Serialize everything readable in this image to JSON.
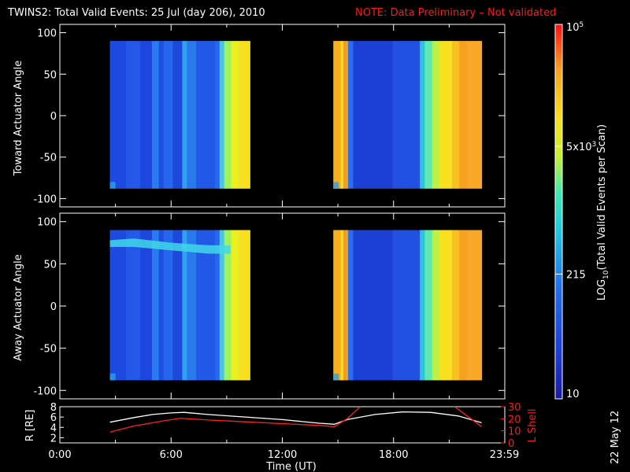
{
  "header": {
    "title": "TWINS2: Total Valid Events: 25 Jul (day 206), 2010",
    "note": "NOTE: Data Preliminary – Not validated"
  },
  "side_date": "22 May 12",
  "colors": {
    "background": "#000000",
    "axis": "#ffffff",
    "note": "#ff1a1a",
    "r_line": "#ffffff",
    "lshell_line": "#ff2020"
  },
  "chart_data": [
    {
      "type": "heatmap",
      "panel": "toward",
      "ylabel": "Toward Actuator Angle",
      "ylim": [
        -110,
        110
      ],
      "yticks": [
        100,
        50,
        0,
        -50,
        -100
      ],
      "xlim": [
        0,
        24
      ],
      "blocks": [
        {
          "t_start": 2.7,
          "t_end": 10.25,
          "angle_min": -88,
          "angle_max": 90
        },
        {
          "t_start": 14.75,
          "t_end": 22.75,
          "angle_min": -88,
          "angle_max": 90
        }
      ]
    },
    {
      "type": "heatmap",
      "panel": "away",
      "ylabel": "Away Actuator Angle",
      "ylim": [
        -110,
        110
      ],
      "yticks": [
        100,
        50,
        0,
        -50,
        -100
      ],
      "xlim": [
        0,
        24
      ],
      "blocks": [
        {
          "t_start": 2.7,
          "t_end": 10.25,
          "angle_min": -88,
          "angle_max": 90
        },
        {
          "t_start": 14.75,
          "t_end": 22.75,
          "angle_min": -88,
          "angle_max": 90
        }
      ]
    },
    {
      "type": "line",
      "panel": "orbit",
      "ylabel": "R [RE]",
      "y2label": "L Shell",
      "ylim": [
        1,
        8
      ],
      "yticks": [
        2,
        4,
        6,
        8
      ],
      "y2lim": [
        0,
        30
      ],
      "y2ticks": [
        0,
        10,
        20,
        30
      ],
      "xlim": [
        0,
        24
      ],
      "xticklabels": [
        "0:00",
        "6:00",
        "12:00",
        "18:00",
        "23:59"
      ],
      "xtickvalues": [
        0,
        6,
        12,
        18,
        23.98
      ],
      "xlabel": "Time (UT)",
      "series": [
        {
          "key": "R",
          "axis": "left",
          "color": "#ffffff",
          "x": [
            2.7,
            4,
            5,
            6,
            6.7,
            8,
            10,
            12,
            14,
            14.8,
            15.5,
            17,
            18.5,
            20,
            21.5,
            22.75
          ],
          "y": [
            5.0,
            5.9,
            6.5,
            6.8,
            6.9,
            6.5,
            6.0,
            5.5,
            4.8,
            4.6,
            5.5,
            6.5,
            7.0,
            6.9,
            6.2,
            4.9
          ]
        },
        {
          "key": "L",
          "axis": "right",
          "color": "#ff2020",
          "x": [
            2.7,
            4,
            5.5,
            6.5,
            8,
            10,
            12,
            14,
            14.8,
            15.5,
            16.2
          ],
          "y": [
            9,
            14,
            18,
            20.5,
            19,
            17.5,
            16,
            14.5,
            13.5,
            20,
            30
          ]
        },
        {
          "key": "L2",
          "axis": "right",
          "color": "#ff2020",
          "x": [
            21.3,
            22,
            22.75
          ],
          "y": [
            30,
            22,
            13.5
          ]
        }
      ]
    }
  ],
  "colorbar": {
    "label": "LOG10(Total Valid Events per Scan)",
    "label_main": "LOG",
    "label_sub": "10",
    "label_rest": "(Total Valid Events per Scan)",
    "ticks": [
      {
        "label": "10",
        "value": 10
      },
      {
        "label": "215",
        "value": 215
      },
      {
        "label_base": "5x10",
        "label_exp": "3",
        "value": 5000
      },
      {
        "label_base": "10",
        "label_exp": "5",
        "value": 100000
      }
    ],
    "range": [
      10,
      100000
    ]
  }
}
